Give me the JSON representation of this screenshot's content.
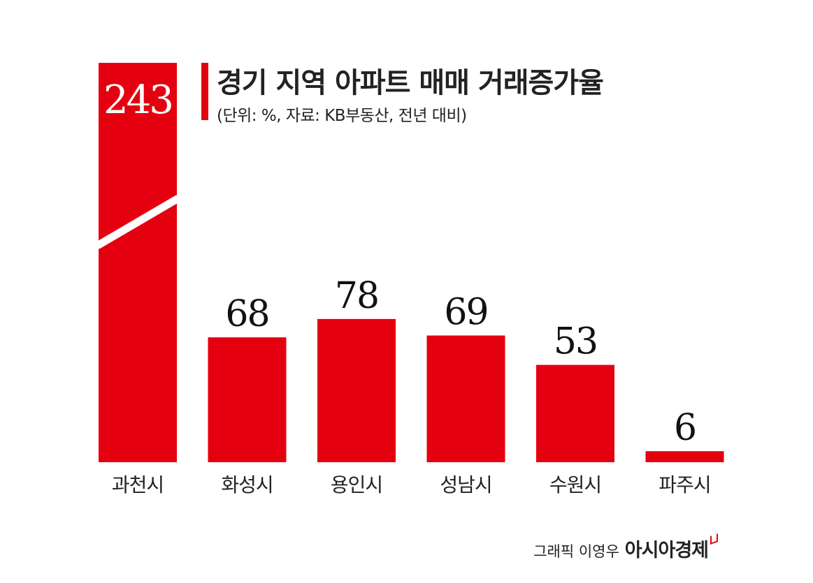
{
  "title": "경기 지역 아파트 매매 거래증가율",
  "subtitle": "(단위: %, 자료: KB부동산, 전년 대비)",
  "credit": {
    "author": "그래픽 이영우",
    "brand": "아시아경제"
  },
  "colors": {
    "bar": "#e4000f",
    "text": "#111111",
    "label_inside": "#ffffff"
  },
  "chart_data": {
    "type": "bar",
    "categories": [
      "과천시",
      "화성시",
      "용인시",
      "성남시",
      "수원시",
      "파주시"
    ],
    "values": [
      243,
      68,
      78,
      69,
      53,
      6
    ],
    "data_labels": [
      "243",
      "68",
      "78",
      "69",
      "53",
      "6"
    ],
    "axis_break": "과천시",
    "grid": false,
    "legend": "none"
  }
}
